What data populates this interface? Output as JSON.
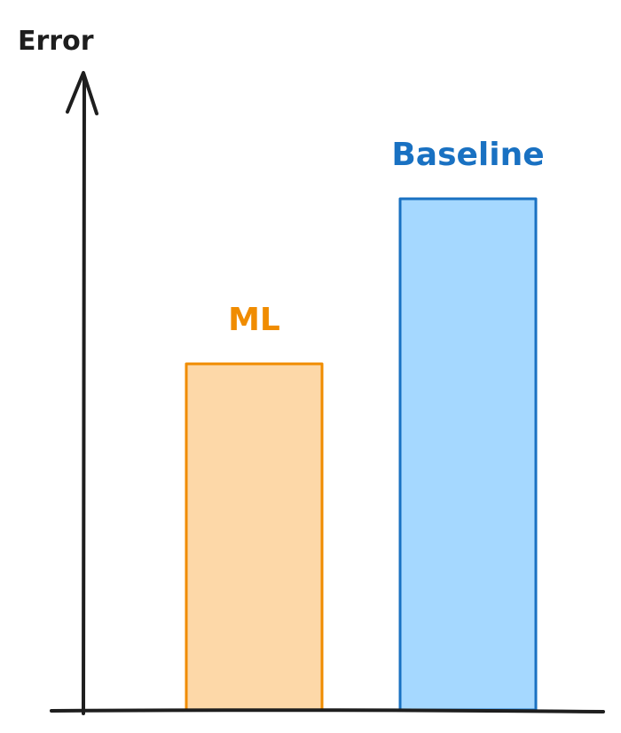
{
  "chart_data": {
    "type": "bar",
    "categories": [
      "ML",
      "Baseline"
    ],
    "values": [
      6.5,
      9.6
    ],
    "title": "",
    "xlabel": "",
    "ylabel": "Error",
    "ylim": [
      0,
      12
    ],
    "grid": false,
    "legend": "none",
    "bar_colors": [
      {
        "fill": "#fdd8a8",
        "stroke": "#f08c00",
        "label": "#f08c00"
      },
      {
        "fill": "#a5d8ff",
        "stroke": "#1971c2",
        "label": "#1971c2"
      }
    ],
    "axis_color": "#1e1e1e"
  }
}
